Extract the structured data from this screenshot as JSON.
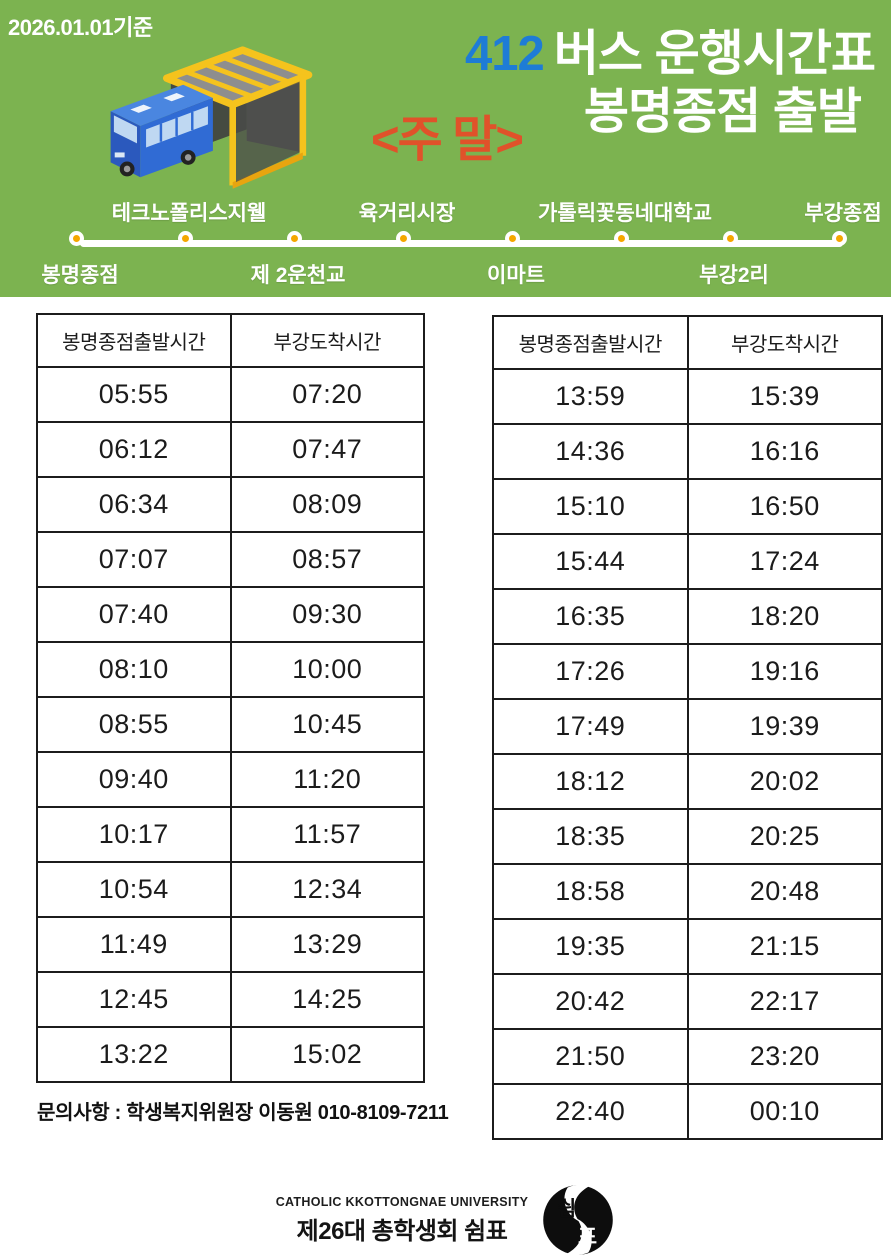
{
  "header": {
    "effective_date": "2026.01.01기준",
    "route_number": "412",
    "title": "버스 운행시간표",
    "subtitle": "봉명종점 출발",
    "schedule_type": "<주 말>"
  },
  "route": {
    "stops": [
      "봉명종점",
      "테크노폴리스지웰",
      "제 2운천교",
      "육거리시장",
      "이마트",
      "가톨릭꽃동네대학교",
      "부강2리",
      "부강종점"
    ]
  },
  "tables": [
    {
      "headers": [
        "봉명종점출발시간",
        "부강도착시간"
      ],
      "rows": [
        [
          "05:55",
          "07:20"
        ],
        [
          "06:12",
          "07:47"
        ],
        [
          "06:34",
          "08:09"
        ],
        [
          "07:07",
          "08:57"
        ],
        [
          "07:40",
          "09:30"
        ],
        [
          "08:10",
          "10:00"
        ],
        [
          "08:55",
          "10:45"
        ],
        [
          "09:40",
          "11:20"
        ],
        [
          "10:17",
          "11:57"
        ],
        [
          "10:54",
          "12:34"
        ],
        [
          "11:49",
          "13:29"
        ],
        [
          "12:45",
          "14:25"
        ],
        [
          "13:22",
          "15:02"
        ]
      ]
    },
    {
      "headers": [
        "봉명종점출발시간",
        "부강도착시간"
      ],
      "rows": [
        [
          "13:59",
          "15:39"
        ],
        [
          "14:36",
          "16:16"
        ],
        [
          "15:10",
          "16:50"
        ],
        [
          "15:44",
          "17:24"
        ],
        [
          "16:35",
          "18:20"
        ],
        [
          "17:26",
          "19:16"
        ],
        [
          "17:49",
          "19:39"
        ],
        [
          "18:12",
          "20:02"
        ],
        [
          "18:35",
          "20:25"
        ],
        [
          "18:58",
          "20:48"
        ],
        [
          "19:35",
          "21:15"
        ],
        [
          "20:42",
          "22:17"
        ],
        [
          "21:50",
          "23:20"
        ],
        [
          "22:40",
          "00:10"
        ]
      ]
    }
  ],
  "contact": {
    "text": "문의사항 : 학생복지위원장 이동원 010-8109-7211"
  },
  "footer": {
    "university": "CATHOLIC KKOTTONGNAE UNIVERSITY",
    "council": "제26대 총학생회 쉼표",
    "logo_top_char": "쉼",
    "logo_bottom_char": "표"
  },
  "colors": {
    "background_green": "#7CB350",
    "route_number_blue": "#1E7CD6",
    "weekend_orange": "#E0522A",
    "dot_orange": "#F5A700",
    "table_border": "#1C1C1C",
    "text_dark": "#1B1B1B"
  }
}
